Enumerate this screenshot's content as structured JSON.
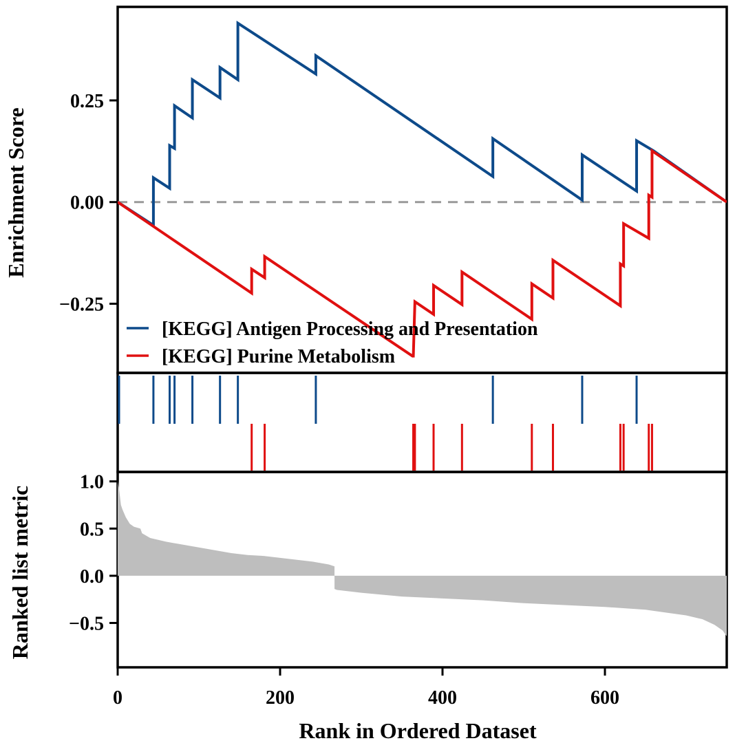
{
  "chart_data": {
    "type": "line",
    "title": "",
    "xlabel": "Rank in Ordered Dataset",
    "xlim": [
      0,
      750
    ],
    "x_ticks": [
      0,
      200,
      400,
      600
    ],
    "x_tick_labels": [
      "0",
      "200",
      "400",
      "600"
    ],
    "top_panel": {
      "ylabel": "Enrichment Score",
      "ylim": [
        -0.42,
        0.48
      ],
      "y_ticks": [
        0.25,
        0.0,
        -0.25
      ],
      "y_tick_labels": [
        "0.25",
        "0.00",
        "−0.25"
      ],
      "zero_line": "dashed",
      "legend_position": "bottom-left",
      "series": [
        {
          "name": "[KEGG] Antigen Processing and Presentation",
          "color": "#0d4a8a",
          "hits": [
            0,
            44,
            64,
            70,
            92,
            126,
            148,
            244,
            462,
            572,
            639
          ],
          "points": [
            [
              0,
              0
            ],
            [
              44,
              -0.057
            ],
            [
              44,
              0.06
            ],
            [
              64,
              0.034
            ],
            [
              64,
              0.139
            ],
            [
              70,
              0.132
            ],
            [
              70,
              0.237
            ],
            [
              92,
              0.207
            ],
            [
              92,
              0.301
            ],
            [
              126,
              0.256
            ],
            [
              126,
              0.331
            ],
            [
              148,
              0.301
            ],
            [
              148,
              0.44
            ],
            [
              244,
              0.315
            ],
            [
              244,
              0.36
            ],
            [
              462,
              0.063
            ],
            [
              462,
              0.156
            ],
            [
              572,
              0.005
            ],
            [
              572,
              0.116
            ],
            [
              639,
              0.027
            ],
            [
              639,
              0.151
            ],
            [
              660,
              0.126
            ],
            [
              750,
              0
            ]
          ]
        },
        {
          "name": "[KEGG] Purine Metabolism",
          "color": "#e01010",
          "hits": [
            165,
            181,
            364,
            366,
            389,
            424,
            510,
            536,
            619,
            623,
            654,
            658
          ],
          "points": [
            [
              0,
              0
            ],
            [
              165,
              -0.224
            ],
            [
              165,
              -0.165
            ],
            [
              181,
              -0.186
            ],
            [
              181,
              -0.134
            ],
            [
              364,
              -0.38
            ],
            [
              364,
              -0.382
            ],
            [
              366,
              -0.245
            ],
            [
              389,
              -0.276
            ],
            [
              389,
              -0.205
            ],
            [
              424,
              -0.252
            ],
            [
              424,
              -0.172
            ],
            [
              510,
              -0.288
            ],
            [
              510,
              -0.201
            ],
            [
              536,
              -0.236
            ],
            [
              536,
              -0.143
            ],
            [
              619,
              -0.255
            ],
            [
              619,
              -0.152
            ],
            [
              623,
              -0.157
            ],
            [
              623,
              -0.053
            ],
            [
              654,
              -0.089
            ],
            [
              654,
              0.017
            ],
            [
              658,
              0.012
            ],
            [
              658,
              0.126
            ],
            [
              750,
              0
            ]
          ]
        }
      ]
    },
    "bottom_panel": {
      "type": "area",
      "ylabel": "Ranked list metric",
      "ylim": [
        -0.97,
        1.1
      ],
      "y_ticks": [
        1.0,
        0.5,
        0.0,
        -0.5
      ],
      "y_tick_labels": [
        "1.0",
        "0.5",
        "0.0",
        "−0.5"
      ],
      "fill_color": "#bebebe",
      "points": [
        [
          0,
          1.0
        ],
        [
          2,
          0.9
        ],
        [
          4,
          0.75
        ],
        [
          6,
          0.7
        ],
        [
          10,
          0.62
        ],
        [
          15,
          0.55
        ],
        [
          20,
          0.52
        ],
        [
          28,
          0.5
        ],
        [
          30,
          0.45
        ],
        [
          40,
          0.4
        ],
        [
          60,
          0.36
        ],
        [
          80,
          0.33
        ],
        [
          100,
          0.3
        ],
        [
          120,
          0.27
        ],
        [
          140,
          0.24
        ],
        [
          160,
          0.22
        ],
        [
          180,
          0.21
        ],
        [
          200,
          0.19
        ],
        [
          220,
          0.17
        ],
        [
          240,
          0.15
        ],
        [
          260,
          0.12
        ],
        [
          267,
          0.1
        ],
        [
          267,
          -0.14
        ],
        [
          270,
          -0.15
        ],
        [
          300,
          -0.18
        ],
        [
          350,
          -0.22
        ],
        [
          400,
          -0.24
        ],
        [
          450,
          -0.26
        ],
        [
          500,
          -0.29
        ],
        [
          550,
          -0.31
        ],
        [
          600,
          -0.33
        ],
        [
          650,
          -0.36
        ],
        [
          700,
          -0.42
        ],
        [
          720,
          -0.46
        ],
        [
          735,
          -0.52
        ],
        [
          745,
          -0.58
        ],
        [
          750,
          -0.64
        ],
        [
          750,
          0
        ]
      ]
    }
  }
}
